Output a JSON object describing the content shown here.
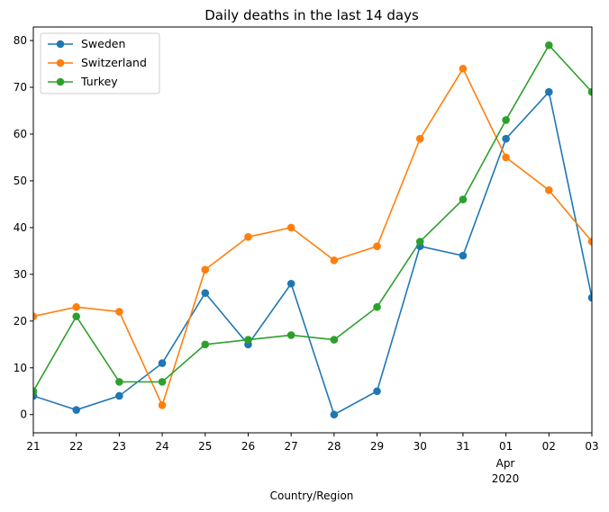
{
  "chart_data": {
    "type": "line",
    "title": "Daily deaths in the last 14 days",
    "xlabel": "Country/Region",
    "ylabel": "",
    "x": [
      "2020-03-21",
      "2020-03-22",
      "2020-03-23",
      "2020-03-24",
      "2020-03-25",
      "2020-03-26",
      "2020-03-27",
      "2020-03-28",
      "2020-03-29",
      "2020-03-30",
      "2020-03-31",
      "2020-04-01",
      "2020-04-02",
      "2020-04-03"
    ],
    "x_tick_labels": [
      "21",
      "22",
      "23",
      "24",
      "25",
      "26",
      "27",
      "28",
      "29",
      "30",
      "31",
      "01",
      "02",
      "03"
    ],
    "x_secondary_label": [
      "Apr",
      "2020"
    ],
    "ylim": [
      -3.9,
      82.9
    ],
    "y_ticks": [
      0,
      10,
      20,
      30,
      40,
      50,
      60,
      70,
      80
    ],
    "grid": false,
    "legend_position": "top-left",
    "series": [
      {
        "name": "Sweden",
        "color": "#1f77b4",
        "values": [
          4,
          1,
          4,
          11,
          26,
          15,
          28,
          0,
          5,
          36,
          34,
          59,
          69,
          25
        ]
      },
      {
        "name": "Switzerland",
        "color": "#ff7f0e",
        "values": [
          21,
          23,
          22,
          2,
          31,
          38,
          40,
          33,
          36,
          59,
          74,
          55,
          48,
          37
        ]
      },
      {
        "name": "Turkey",
        "color": "#2ca02c",
        "values": [
          5,
          21,
          7,
          7,
          15,
          16,
          17,
          16,
          23,
          37,
          46,
          63,
          79,
          69
        ]
      }
    ]
  }
}
